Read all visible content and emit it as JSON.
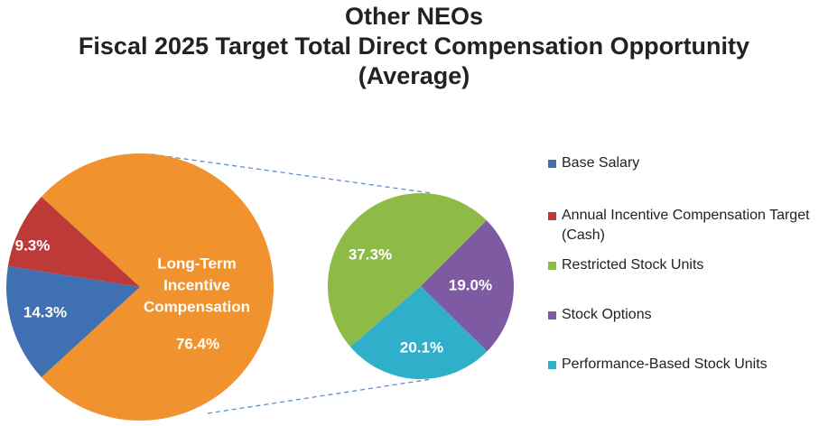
{
  "chart_data": {
    "type": "pie",
    "title_lines": [
      "Other NEOs",
      "Fiscal 2025 Target Total Direct Compensation Opportunity",
      "(Average)"
    ],
    "main_pie": {
      "slices": [
        {
          "name": "Long-Term Incentive Compensation",
          "value": 76.4,
          "label": "76.4%",
          "color": "#F0922E"
        },
        {
          "name": "Base Salary",
          "value": 14.3,
          "label": "14.3%",
          "color": "#3E70B2"
        },
        {
          "name": "Annual Incentive Compensation Target (Cash)",
          "value": 9.3,
          "label": "9.3%",
          "color": "#BD3A38"
        }
      ],
      "center_label_lines": [
        "Long-Term",
        "Incentive",
        "Compensation"
      ]
    },
    "detail_pie": {
      "breakout_of": "Long-Term Incentive Compensation",
      "slices": [
        {
          "name": "Restricted Stock Units",
          "value": 37.3,
          "label": "37.3%",
          "color": "#8EBB45"
        },
        {
          "name": "Stock Options",
          "value": 19.0,
          "label": "19.0%",
          "color": "#7E5AA3"
        },
        {
          "name": "Performance-Based Stock Units",
          "value": 20.1,
          "label": "20.1%",
          "color": "#2FAFC9"
        }
      ]
    },
    "legend": [
      {
        "label": "Base Salary",
        "color": "#3E70B2"
      },
      {
        "label": "Annual Incentive Compensation Target (Cash)",
        "color": "#BD3A38"
      },
      {
        "label": "Restricted Stock Units",
        "color": "#8EBB45"
      },
      {
        "label": "Stock Options",
        "color": "#7E5AA3"
      },
      {
        "label": "Performance-Based Stock Units",
        "color": "#2FAFC9"
      }
    ]
  }
}
